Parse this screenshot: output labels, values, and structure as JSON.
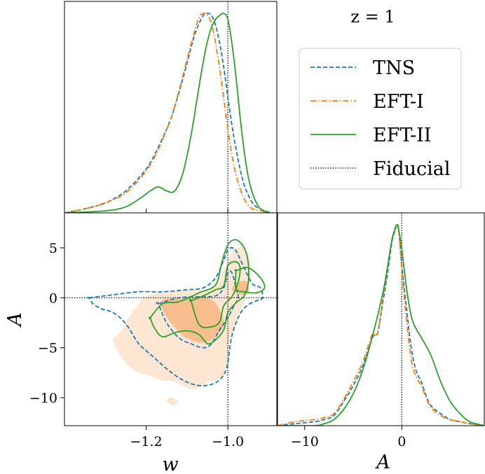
{
  "annotation": "z = 1",
  "legend": {
    "placement": "upper-right",
    "entries": [
      {
        "key": "tns",
        "label": "TNS"
      },
      {
        "key": "eft1",
        "label": "EFT-I"
      },
      {
        "key": "eft2",
        "label": "EFT-II"
      },
      {
        "key": "fiducial",
        "label": "Fiducial"
      }
    ]
  },
  "colors": {
    "tns": "#1f77b4",
    "eft1": "#ff7f0e",
    "eft2": "#2ca02c",
    "fiducial": "#000000",
    "fill_outer": "#fde6d2",
    "fill_inner": "#f9be8e"
  },
  "chart_data": [
    {
      "panel": "w-marginal",
      "type": "line",
      "xlim": [
        -1.4,
        -0.88
      ],
      "ylim": [
        0,
        1.06
      ],
      "xlabel": "",
      "ylabel": "",
      "fiducial_x": -1.0,
      "series": [
        {
          "key": "tns",
          "x": [
            -1.4,
            -1.35,
            -1.3,
            -1.25,
            -1.2,
            -1.17,
            -1.14,
            -1.12,
            -1.1,
            -1.08,
            -1.06,
            -1.05,
            -1.04,
            -1.03,
            -1.02,
            -1.01,
            -1.0,
            -0.99,
            -0.98,
            -0.97,
            -0.96,
            -0.95,
            -0.94,
            -0.93,
            -0.91,
            -0.89
          ],
          "y": [
            0.0,
            0.02,
            0.05,
            0.11,
            0.22,
            0.33,
            0.47,
            0.6,
            0.75,
            0.9,
            0.99,
            1.0,
            0.99,
            0.94,
            0.85,
            0.73,
            0.58,
            0.44,
            0.32,
            0.22,
            0.14,
            0.09,
            0.05,
            0.03,
            0.01,
            0.0
          ]
        },
        {
          "key": "eft1",
          "x": [
            -1.4,
            -1.35,
            -1.3,
            -1.25,
            -1.2,
            -1.17,
            -1.14,
            -1.12,
            -1.1,
            -1.08,
            -1.07,
            -1.06,
            -1.05,
            -1.04,
            -1.03,
            -1.02,
            -1.01,
            -1.0,
            -0.99,
            -0.98,
            -0.97,
            -0.96,
            -0.95,
            -0.94,
            -0.92,
            -0.9
          ],
          "y": [
            0.0,
            0.02,
            0.05,
            0.1,
            0.21,
            0.32,
            0.47,
            0.61,
            0.77,
            0.92,
            0.98,
            1.0,
            0.99,
            0.95,
            0.85,
            0.72,
            0.57,
            0.42,
            0.29,
            0.19,
            0.12,
            0.07,
            0.04,
            0.02,
            0.01,
            0.0
          ]
        },
        {
          "key": "eft2",
          "x": [
            -1.4,
            -1.3,
            -1.25,
            -1.21,
            -1.19,
            -1.17,
            -1.15,
            -1.13,
            -1.11,
            -1.09,
            -1.07,
            -1.06,
            -1.05,
            -1.04,
            -1.03,
            -1.02,
            -1.01,
            -1.0,
            -0.99,
            -0.98,
            -0.97,
            -0.96,
            -0.95,
            -0.94,
            -0.93,
            -0.92,
            -0.9
          ],
          "y": [
            0.0,
            0.01,
            0.03,
            0.08,
            0.11,
            0.13,
            0.11,
            0.11,
            0.2,
            0.39,
            0.64,
            0.76,
            0.86,
            0.93,
            0.97,
            0.99,
            1.0,
            0.97,
            0.85,
            0.68,
            0.48,
            0.31,
            0.18,
            0.1,
            0.05,
            0.02,
            0.0
          ]
        }
      ]
    },
    {
      "panel": "w-A-contours",
      "type": "contour",
      "xlim": [
        -1.4,
        -0.88
      ],
      "ylim": [
        -12.8,
        8.5
      ],
      "xlabel": "w",
      "ylabel": "A",
      "xticks": [
        -1.2,
        -1.0
      ],
      "yticks": [
        5,
        0,
        -5,
        -10
      ],
      "fiducial": {
        "w": -1.0,
        "A": 0.0
      },
      "regions": [
        {
          "key": "eft1_outer",
          "fill": "fill_outer",
          "w": [
            -1.2,
            -1.14,
            -1.08,
            -1.03,
            -0.99,
            -0.96,
            -0.945,
            -0.95,
            -0.97,
            -0.99,
            -1.0,
            -1.01,
            -1.03,
            -1.05,
            -1.07,
            -1.09,
            -1.11,
            -1.13,
            -1.16,
            -1.19,
            -1.22,
            -1.25,
            -1.28,
            -1.26,
            -1.24,
            -1.22
          ],
          "A": [
            0.2,
            0.7,
            0.8,
            1.2,
            4.5,
            5.0,
            3.0,
            0.8,
            -1.2,
            -3.6,
            -5.8,
            -7.6,
            -8.3,
            -8.4,
            -9.0,
            -9.1,
            -8.8,
            -8.4,
            -8.3,
            -7.8,
            -7.5,
            -6.5,
            -4.4,
            -3.3,
            -1.8,
            -0.7
          ]
        },
        {
          "key": "eft1_outer_blob",
          "fill": "fill_outer",
          "w": [
            -1.14,
            -1.13,
            -1.12,
            -1.13,
            -1.14,
            -1.15,
            -1.14
          ],
          "A": [
            -9.9,
            -10.1,
            -10.4,
            -10.7,
            -10.7,
            -10.3,
            -9.9
          ]
        },
        {
          "key": "eft1_inner",
          "fill": "fill_inner",
          "w": [
            -1.16,
            -1.12,
            -1.08,
            -1.04,
            -1.02,
            -1.01,
            -1.02,
            -1.05,
            -1.08,
            -1.11,
            -1.14,
            -1.16
          ],
          "A": [
            -0.2,
            -0.1,
            0.0,
            -0.2,
            -1.2,
            -2.5,
            -3.5,
            -4.4,
            -4.4,
            -3.8,
            -2.5,
            -1.2
          ]
        },
        {
          "key": "eft1_inner_blob",
          "fill": "fill_inner",
          "w": [
            -0.98,
            -0.96,
            -0.95,
            -0.95,
            -0.97,
            -0.99,
            -0.98
          ],
          "A": [
            1.5,
            1.7,
            1.3,
            0.5,
            0.3,
            0.8,
            1.5
          ]
        }
      ],
      "series": [
        {
          "key": "tns",
          "level": "outer",
          "w": [
            -1.34,
            -1.28,
            -1.22,
            -1.16,
            -1.1,
            -1.06,
            -1.03,
            -1.01,
            -1.0,
            -0.99,
            -0.98,
            -0.96,
            -0.94,
            -0.92,
            -0.915,
            -0.93,
            -0.95,
            -0.97,
            -0.99,
            -1.0,
            -1.01,
            -1.03,
            -1.06,
            -1.09,
            -1.12,
            -1.15,
            -1.18,
            -1.2,
            -1.22,
            -1.25,
            -1.28,
            -1.31,
            -1.33,
            -1.34
          ],
          "A": [
            0.0,
            0.3,
            0.6,
            0.6,
            0.8,
            1.0,
            2.0,
            3.8,
            4.8,
            5.0,
            4.7,
            3.0,
            1.4,
            1.0,
            0.0,
            -0.3,
            -0.7,
            -1.6,
            -3.8,
            -6.5,
            -7.7,
            -8.5,
            -8.8,
            -8.6,
            -8.0,
            -7.1,
            -6.0,
            -5.3,
            -4.5,
            -2.6,
            -1.5,
            -1.1,
            -0.6,
            0.0
          ]
        },
        {
          "key": "tns",
          "level": "inner",
          "w": [
            -1.17,
            -1.12,
            -1.07,
            -1.03,
            -1.01,
            -1.0,
            -0.99,
            -0.98,
            -0.975,
            -0.985,
            -1.0,
            -1.02,
            -1.04,
            -1.06,
            -1.09,
            -1.12,
            -1.15,
            -1.17
          ],
          "A": [
            -0.6,
            0.0,
            0.1,
            0.2,
            1.0,
            2.5,
            2.5,
            1.0,
            0.0,
            -0.8,
            -2.0,
            -3.2,
            -4.6,
            -5.0,
            -4.6,
            -4.0,
            -2.5,
            -0.6
          ]
        },
        {
          "key": "eft2",
          "level": "outer",
          "w": [
            -1.19,
            -1.16,
            -1.12,
            -1.07,
            -1.03,
            -1.015,
            -1.0,
            -0.98,
            -0.96,
            -0.95,
            -0.95,
            -0.96,
            -0.98,
            -1.0,
            -1.01,
            -1.03,
            -1.05,
            -1.07,
            -1.1,
            -1.13,
            -1.16,
            -1.18,
            -1.19
          ],
          "A": [
            -2.0,
            -0.6,
            -0.4,
            0.5,
            1.3,
            3.5,
            5.3,
            5.8,
            5.0,
            3.5,
            1.5,
            0.2,
            -0.5,
            -1.5,
            -3.2,
            -4.2,
            -4.6,
            -3.7,
            -3.3,
            -3.5,
            -3.9,
            -3.0,
            -2.0
          ]
        },
        {
          "key": "eft2",
          "level": "inner",
          "w": [
            -1.09,
            -1.06,
            -1.03,
            -1.01,
            -1.0,
            -0.98,
            -0.97,
            -0.975,
            -0.99,
            -1.01,
            -1.02,
            -1.04,
            -1.07,
            -1.09
          ],
          "A": [
            -0.3,
            0.2,
            0.8,
            1.2,
            3.2,
            3.6,
            3.0,
            1.5,
            0.1,
            -0.8,
            -2.4,
            -2.9,
            -2.7,
            -0.3
          ]
        },
        {
          "key": "eft2",
          "level": "outer_lobe",
          "w": [
            -0.98,
            -0.95,
            -0.92,
            -0.91,
            -0.93,
            -0.96,
            -0.98,
            -0.98
          ],
          "A": [
            2.7,
            3.0,
            2.0,
            1.0,
            0.5,
            0.6,
            0.9,
            2.7
          ]
        }
      ]
    },
    {
      "panel": "A-marginal",
      "type": "line",
      "xlim": [
        -12.8,
        8.5
      ],
      "ylim": [
        0,
        1.06
      ],
      "xlabel": "A",
      "ylabel": "",
      "xticks": [
        -10,
        0
      ],
      "fiducial_x": 0.0,
      "series": [
        {
          "key": "tns",
          "x": [
            -12.8,
            -11,
            -9,
            -8,
            -7,
            -6,
            -5,
            -4,
            -3,
            -2.5,
            -2,
            -1.5,
            -1,
            -0.7,
            -0.5,
            -0.3,
            0,
            0.5,
            1,
            1.5,
            2,
            2.5,
            3,
            4,
            5,
            6,
            7,
            8.5
          ],
          "y": [
            0.0,
            0.01,
            0.02,
            0.03,
            0.05,
            0.12,
            0.2,
            0.3,
            0.44,
            0.46,
            0.6,
            0.75,
            0.92,
            0.97,
            1.0,
            0.97,
            0.8,
            0.58,
            0.38,
            0.27,
            0.22,
            0.15,
            0.1,
            0.06,
            0.03,
            0.02,
            0.01,
            0.0
          ]
        },
        {
          "key": "eft1",
          "x": [
            -12.8,
            -11,
            -9,
            -8,
            -7,
            -6,
            -5,
            -4,
            -3,
            -2.5,
            -2,
            -1.5,
            -1,
            -0.7,
            -0.5,
            -0.3,
            0,
            0.5,
            1,
            1.5,
            2,
            2.5,
            3,
            4,
            5,
            6,
            7,
            8.5
          ],
          "y": [
            0.0,
            0.02,
            0.03,
            0.04,
            0.06,
            0.13,
            0.22,
            0.32,
            0.46,
            0.46,
            0.62,
            0.78,
            0.93,
            0.98,
            1.0,
            0.96,
            0.78,
            0.52,
            0.32,
            0.24,
            0.2,
            0.14,
            0.09,
            0.05,
            0.03,
            0.02,
            0.01,
            0.0
          ]
        },
        {
          "key": "eft2",
          "x": [
            -12.8,
            -9,
            -8,
            -7,
            -6,
            -5,
            -4,
            -3,
            -2,
            -1.5,
            -1,
            -0.5,
            -0.3,
            0,
            0.5,
            1,
            1.5,
            2,
            3,
            4,
            5,
            6,
            7,
            8.5
          ],
          "y": [
            0.0,
            0.0,
            0.01,
            0.03,
            0.08,
            0.16,
            0.28,
            0.45,
            0.65,
            0.78,
            0.93,
            1.0,
            0.97,
            0.88,
            0.68,
            0.54,
            0.48,
            0.44,
            0.35,
            0.22,
            0.12,
            0.06,
            0.02,
            0.0
          ]
        }
      ]
    }
  ]
}
